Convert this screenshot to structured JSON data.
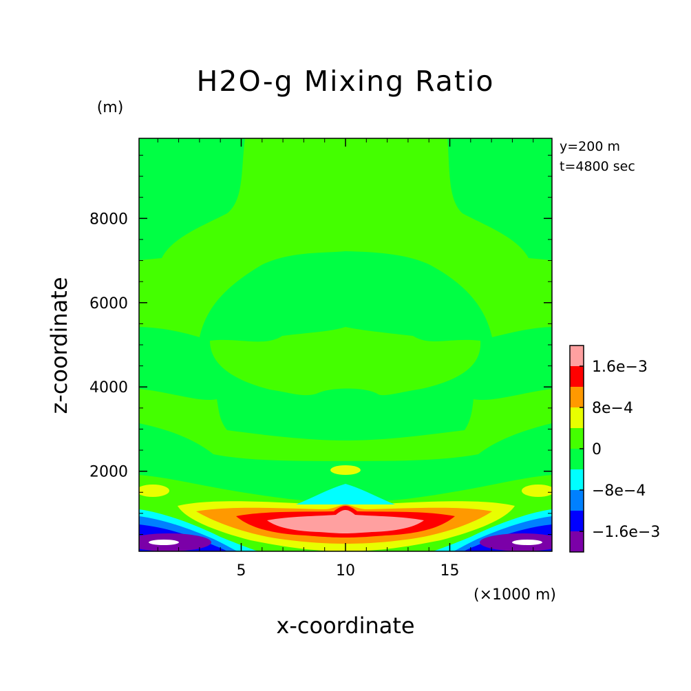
{
  "chart_data": {
    "type": "contour",
    "title": "H2O-g Mixing Ratio",
    "ylabel": "z-coordinate",
    "xlabel": "x-coordinate",
    "yunit": "(m)",
    "xunit": "(×1000 m)",
    "annotations": [
      "y=200 m",
      "t=4800 sec"
    ],
    "xlim": [
      0.1,
      19.9
    ],
    "ylim": [
      100,
      9900
    ],
    "xticks": [
      5,
      10,
      15
    ],
    "xtick_labels": [
      "5",
      "10",
      "15"
    ],
    "yticks": [
      2000,
      4000,
      6000,
      8000
    ],
    "ytick_labels": [
      "2000",
      "4000",
      "6000",
      "8000"
    ],
    "colorbar": {
      "levels": [
        -0.002,
        -0.0016,
        -0.0012,
        -0.0008,
        -0.0004,
        0,
        0.0004,
        0.0008,
        0.0012,
        0.0016,
        0.002
      ],
      "colors": [
        "#7b00a8",
        "#0000ff",
        "#0080ff",
        "#00ffff",
        "#00ff44",
        "#44ff00",
        "#e8ff00",
        "#ff9900",
        "#ff0000",
        "#ffa0a0"
      ],
      "tick_values": [
        -0.0016,
        -0.0008,
        0,
        0.0008,
        0.0016
      ],
      "tick_labels": [
        "−1.6e−3",
        "−8e−4",
        "0",
        "8e−4",
        "1.6e−3"
      ]
    },
    "field_features": [
      {
        "name": "central positive maximum",
        "x_center": 10,
        "z_center": 700,
        "value_range": [
          0.0016,
          0.002
        ]
      },
      {
        "name": "central red band",
        "x_range": [
          5.5,
          14.5
        ],
        "z_range": [
          400,
          1100
        ],
        "value_range": [
          0.0012,
          0.0016
        ]
      },
      {
        "name": "left negative minimum",
        "x_center": 1.5,
        "z_center": 250,
        "value_range": [
          -0.002,
          -0.0016
        ]
      },
      {
        "name": "right negative minimum",
        "x_center": 18.5,
        "z_center": 250,
        "value_range": [
          -0.002,
          -0.0016
        ]
      },
      {
        "name": "cyan negative tongue",
        "x_center": 10,
        "z_center": 1400,
        "value_range": [
          -0.0008,
          -0.0004
        ]
      },
      {
        "name": "small yellow patch",
        "x_center": 10,
        "z_center": 2050,
        "value_range": [
          0.0004,
          0.0008
        ]
      }
    ]
  }
}
